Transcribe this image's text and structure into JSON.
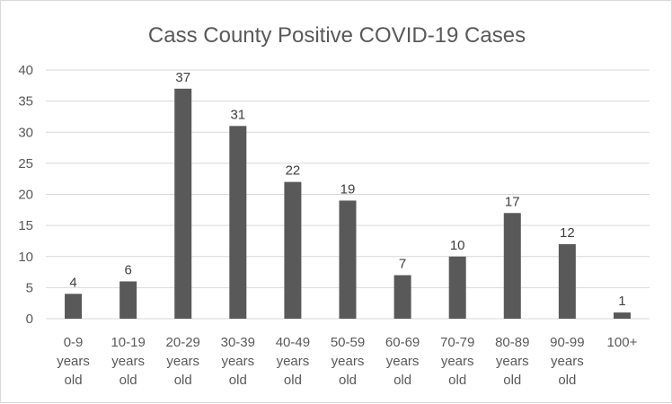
{
  "chart_data": {
    "type": "bar",
    "title": "Cass County Positive COVID-19 Cases",
    "categories": [
      [
        "0-9",
        "years",
        "old"
      ],
      [
        "10-19",
        "years",
        "old"
      ],
      [
        "20-29",
        "years",
        "old"
      ],
      [
        "30-39",
        "years",
        "old"
      ],
      [
        "40-49",
        "years",
        "old"
      ],
      [
        "50-59",
        "years",
        "old"
      ],
      [
        "60-69",
        "years",
        "old"
      ],
      [
        "70-79",
        "years",
        "old"
      ],
      [
        "80-89",
        "years",
        "old"
      ],
      [
        "90-99",
        "years",
        "old"
      ],
      [
        "100+"
      ]
    ],
    "values": [
      4,
      6,
      37,
      31,
      22,
      19,
      7,
      10,
      17,
      12,
      1
    ],
    "yticks": [
      0,
      5,
      10,
      15,
      20,
      25,
      30,
      35,
      40
    ],
    "ylim": [
      0,
      40
    ],
    "grid": true,
    "bar_color": "#595959",
    "xlabel": "",
    "ylabel": ""
  }
}
